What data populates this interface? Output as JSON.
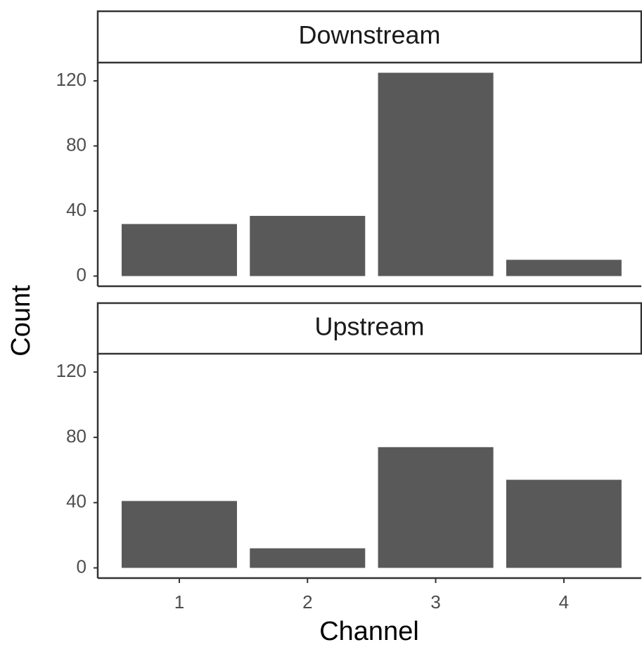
{
  "chart_data": {
    "type": "bar",
    "x_label": "Channel",
    "y_label": "Count",
    "categories": [
      "1",
      "2",
      "3",
      "4"
    ],
    "color": "#595959",
    "ylim": [
      -6.25,
      131.25
    ],
    "yticks": [
      0,
      40,
      80,
      120
    ],
    "facets": [
      {
        "title": "Downstream",
        "values": [
          32,
          37,
          125,
          10
        ]
      },
      {
        "title": "Upstream",
        "values": [
          41,
          12,
          74,
          54
        ]
      }
    ]
  }
}
